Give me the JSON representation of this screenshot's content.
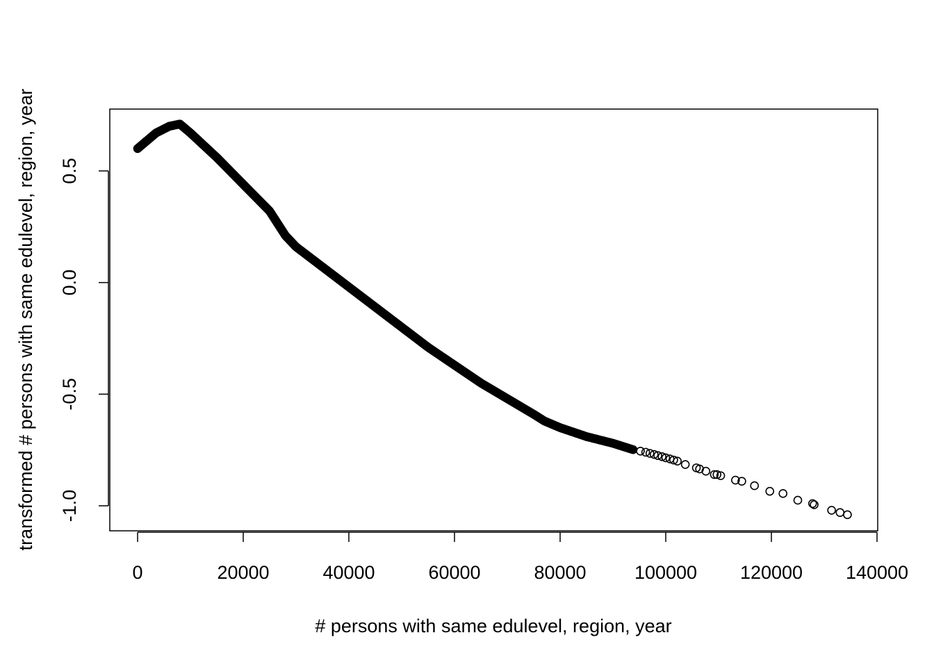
{
  "chart_data": {
    "type": "scatter",
    "title": "",
    "xlabel": "# persons with same edulevel, region, year",
    "ylabel": "transformed # persons with same edulevel, region, year",
    "xlim": [
      -5000,
      140000
    ],
    "ylim": [
      -1.1,
      0.78
    ],
    "x_ticks": [
      0,
      20000,
      40000,
      60000,
      80000,
      100000,
      120000,
      140000
    ],
    "x_tick_labels": [
      "0",
      "20000",
      "40000",
      "60000",
      "80000",
      "100000",
      "120000",
      "140000"
    ],
    "y_ticks": [
      -1.0,
      -0.5,
      0.0,
      0.5
    ],
    "y_tick_labels": [
      "-1.0",
      "-0.5",
      "0.0",
      "0.5"
    ],
    "marker": "open-circle",
    "marker_color": "#000000",
    "dense_curve": {
      "description": "dense cloud of overlapping points tracing a curve",
      "x": [
        0,
        1500,
        3500,
        6000,
        8000,
        10000,
        15000,
        20000,
        25000,
        28000,
        30000,
        35000,
        40000,
        45000,
        50000,
        55000,
        60000,
        65000,
        70000,
        75000,
        77000,
        80000,
        85000,
        90000,
        94000
      ],
      "y": [
        0.6,
        0.63,
        0.67,
        0.7,
        0.71,
        0.67,
        0.56,
        0.44,
        0.32,
        0.21,
        0.16,
        0.07,
        -0.02,
        -0.11,
        -0.2,
        -0.29,
        -0.37,
        -0.45,
        -0.52,
        -0.59,
        -0.62,
        -0.65,
        -0.69,
        -0.72,
        -0.75
      ]
    },
    "sparse_points": {
      "x": [
        95200,
        96200,
        97000,
        97800,
        98500,
        99300,
        100000,
        100800,
        101500,
        102200,
        103700,
        105800,
        106400,
        107600,
        109200,
        109700,
        110400,
        113200,
        114400,
        116800,
        119700,
        122200,
        125000,
        127800,
        128100,
        131400,
        133000,
        134400
      ],
      "y": [
        -0.755,
        -0.76,
        -0.765,
        -0.77,
        -0.775,
        -0.78,
        -0.785,
        -0.79,
        -0.795,
        -0.8,
        -0.815,
        -0.83,
        -0.835,
        -0.845,
        -0.86,
        -0.86,
        -0.865,
        -0.885,
        -0.89,
        -0.91,
        -0.935,
        -0.945,
        -0.975,
        -0.99,
        -0.995,
        -1.02,
        -1.03,
        -1.04
      ]
    }
  }
}
